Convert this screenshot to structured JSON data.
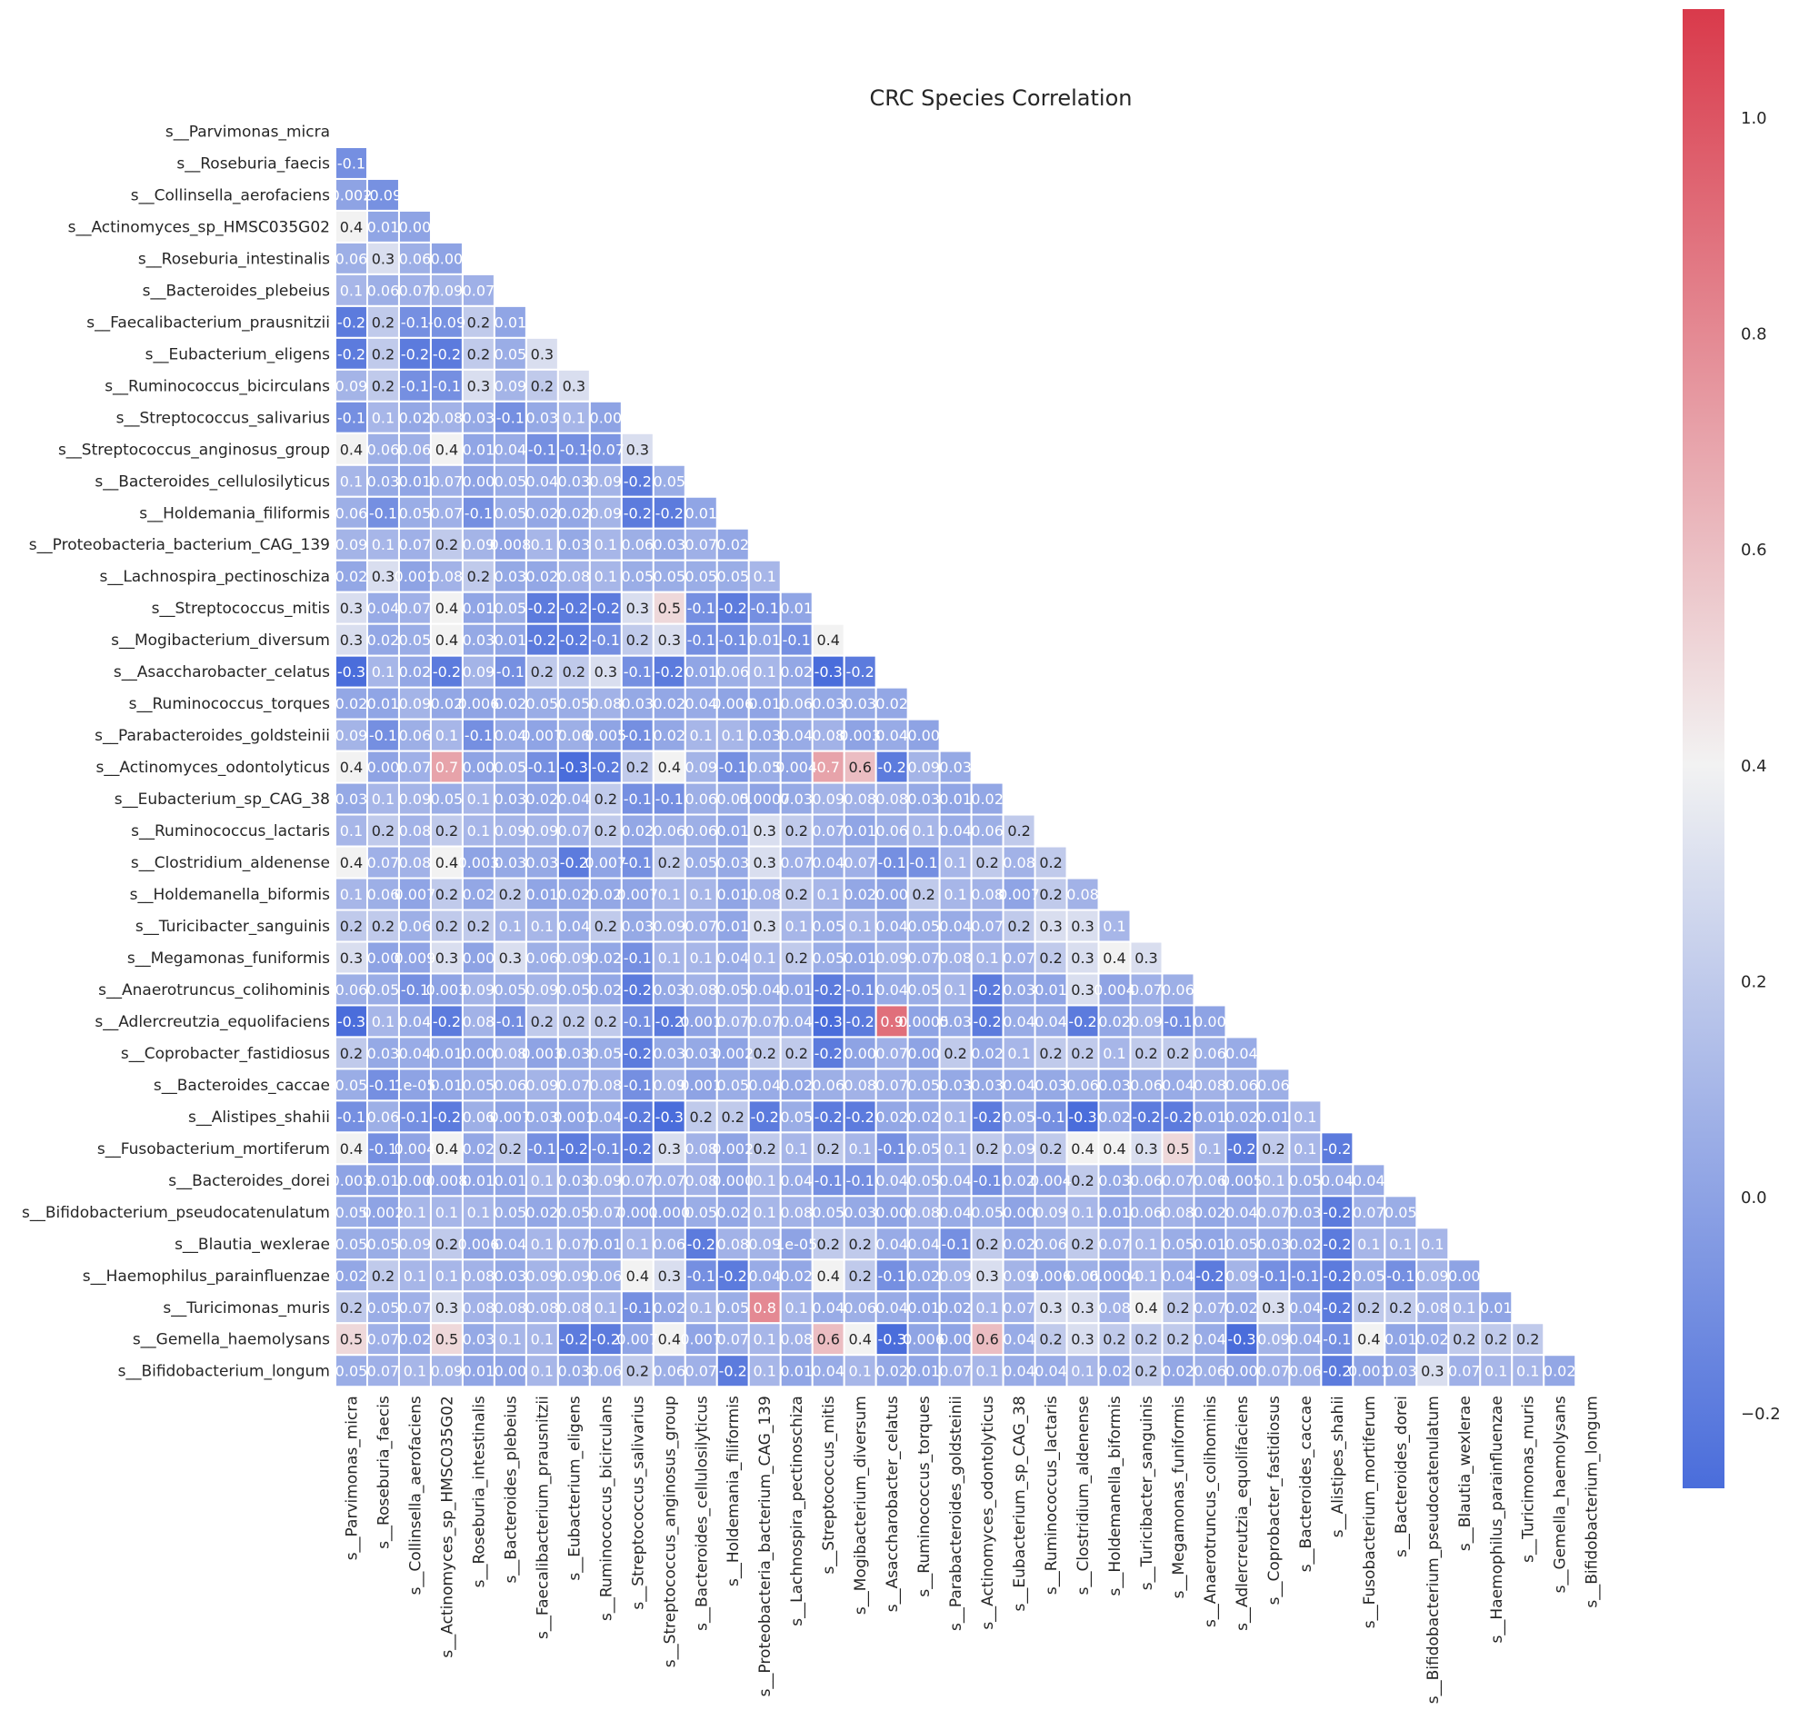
{
  "chart_data": {
    "type": "heatmap",
    "title": "CRC Species Correlation",
    "species": [
      "s__Parvimonas_micra",
      "s__Roseburia_faecis",
      "s__Collinsella_aerofaciens",
      "s__Actinomyces_sp_HMSC035G02",
      "s__Roseburia_intestinalis",
      "s__Bacteroides_plebeius",
      "s__Faecalibacterium_prausnitzii",
      "s__Eubacterium_eligens",
      "s__Ruminococcus_bicirculans",
      "s__Streptococcus_salivarius",
      "s__Streptococcus_anginosus_group",
      "s__Bacteroides_cellulosilyticus",
      "s__Holdemania_filiformis",
      "s__Proteobacteria_bacterium_CAG_139",
      "s__Lachnospira_pectinoschiza",
      "s__Streptococcus_mitis",
      "s__Mogibacterium_diversum",
      "s__Asaccharobacter_celatus",
      "s__Ruminococcus_torques",
      "s__Parabacteroides_goldsteinii",
      "s__Actinomyces_odontolyticus",
      "s__Eubacterium_sp_CAG_38",
      "s__Ruminococcus_lactaris",
      "s__Clostridium_aldenense",
      "s__Holdemanella_biformis",
      "s__Turicibacter_sanguinis",
      "s__Megamonas_funiformis",
      "s__Anaerotruncus_colihominis",
      "s__Adlercreutzia_equolifaciens",
      "s__Coprobacter_fastidiosus",
      "s__Bacteroides_caccae",
      "s__Alistipes_shahii",
      "s__Fusobacterium_mortiferum",
      "s__Bacteroides_dorei",
      "s__Bifidobacterium_pseudocatenulatum",
      "s__Blautia_wexlerae",
      "s__Haemophilus_parainfluenzae",
      "s__Turicimonas_muris",
      "s__Gemella_haemolysans",
      "s__Bifidobacterium_longum"
    ],
    "values": [
      [],
      [
        "-0.1"
      ],
      [
        "0.002",
        "-0.09"
      ],
      [
        "0.4",
        "0.01",
        "0.00"
      ],
      [
        "0.06",
        "0.3",
        "0.06",
        "0.00"
      ],
      [
        "0.1",
        "0.06",
        "0.07",
        "0.09",
        "0.07"
      ],
      [
        "-0.2",
        "0.2",
        "-0.1",
        "-0.09",
        "0.2",
        "0.01"
      ],
      [
        "-0.2",
        "0.2",
        "-0.2",
        "-0.2",
        "0.2",
        "0.05",
        "0.3"
      ],
      [
        "0.09",
        "0.2",
        "-0.1",
        "-0.1",
        "0.3",
        "0.09",
        "0.2",
        "0.3"
      ],
      [
        "-0.1",
        "0.1",
        "0.02",
        "0.08",
        "0.03",
        "-0.1",
        "0.03",
        "0.1",
        "0.00"
      ],
      [
        "0.4",
        "0.06",
        "0.06",
        "0.4",
        "0.01",
        "0.04",
        "-0.1",
        "-0.1",
        "-0.07",
        "0.3"
      ],
      [
        "0.1",
        "0.03",
        "0.01",
        "0.07",
        "0.00",
        "0.05",
        "0.04",
        "0.03",
        "0.09",
        "-0.2",
        "0.05"
      ],
      [
        "0.06",
        "-0.1",
        "0.05",
        "0.07",
        "-0.1",
        "0.05",
        "0.02",
        "0.02",
        "0.09",
        "-0.2",
        "-0.2",
        "0.01"
      ],
      [
        "0.09",
        "0.1",
        "0.07",
        "0.2",
        "0.09",
        "0.008",
        "0.1",
        "0.03",
        "0.1",
        "0.06",
        "0.03",
        "0.07",
        "0.02"
      ],
      [
        "0.02",
        "0.3",
        "0.001",
        "0.08",
        "0.2",
        "0.03",
        "0.02",
        "0.08",
        "0.1",
        "0.05",
        "0.05",
        "0.05",
        "0.05",
        "0.1"
      ],
      [
        "0.3",
        "0.04",
        "0.07",
        "0.4",
        "0.01",
        "0.05",
        "-0.2",
        "-0.2",
        "-0.2",
        "0.3",
        "0.5",
        "-0.1",
        "-0.2",
        "-0.1",
        "0.01"
      ],
      [
        "0.3",
        "0.02",
        "0.05",
        "0.4",
        "0.03",
        "0.01",
        "-0.2",
        "-0.2",
        "-0.1",
        "0.2",
        "0.3",
        "-0.1",
        "-0.1",
        "0.01",
        "-0.1",
        "0.4"
      ],
      [
        "-0.3",
        "0.1",
        "0.02",
        "-0.2",
        "0.09",
        "-0.1",
        "0.2",
        "0.2",
        "0.3",
        "-0.1",
        "-0.2",
        "0.01",
        "0.06",
        "0.1",
        "0.02",
        "-0.3",
        "-0.2"
      ],
      [
        "0.02",
        "0.01",
        "0.09",
        "0.02",
        "0.006",
        "0.02",
        "0.05",
        "0.05",
        "0.08",
        "0.03",
        "0.02",
        "0.04",
        "0.006",
        "0.01",
        "0.06",
        "0.03",
        "0.03",
        "0.02"
      ],
      [
        "0.09",
        "-0.1",
        "0.06",
        "0.1",
        "-0.1",
        "0.04",
        "0.007",
        "0.06",
        "0.005",
        "-0.1",
        "0.02",
        "0.1",
        "0.1",
        "0.03",
        "0.04",
        "0.08",
        "0.003",
        "0.04",
        "0.00"
      ],
      [
        "0.4",
        "0.00",
        "0.07",
        "0.7",
        "0.00",
        "0.05",
        "-0.1",
        "-0.3",
        "-0.2",
        "0.2",
        "0.4",
        "0.09",
        "-0.1",
        "0.05",
        "0.004",
        "0.7",
        "0.6",
        "-0.2",
        "0.09",
        "0.03"
      ],
      [
        "0.03",
        "0.1",
        "0.09",
        "0.05",
        "0.1",
        "0.03",
        "0.02",
        "0.04",
        "0.2",
        "-0.1",
        "-0.1",
        "0.06",
        "0.05",
        "0.0007",
        "0.03",
        "0.09",
        "0.08",
        "0.08",
        "0.03",
        "0.01",
        "0.02"
      ],
      [
        "0.1",
        "0.2",
        "0.08",
        "0.2",
        "0.1",
        "0.09",
        "0.09",
        "0.07",
        "0.2",
        "0.02",
        "0.06",
        "0.06",
        "0.01",
        "0.3",
        "0.2",
        "0.07",
        "0.01",
        "0.06",
        "0.1",
        "0.04",
        "0.06",
        "0.2"
      ],
      [
        "0.4",
        "0.07",
        "0.08",
        "0.4",
        "0.003",
        "0.03",
        "0.03",
        "-0.2",
        "0.007",
        "-0.1",
        "0.2",
        "0.05",
        "0.03",
        "0.3",
        "0.07",
        "0.04",
        "0.07",
        "-0.1",
        "-0.1",
        "0.1",
        "0.2",
        "0.08",
        "0.2"
      ],
      [
        "0.1",
        "0.06",
        "0.007",
        "0.2",
        "0.02",
        "0.2",
        "0.01",
        "0.02",
        "0.02",
        "0.007",
        "0.1",
        "0.1",
        "0.01",
        "0.08",
        "0.2",
        "0.1",
        "0.02",
        "0.00",
        "0.2",
        "0.1",
        "0.08",
        "0.007",
        "0.2",
        "0.08"
      ],
      [
        "0.2",
        "0.2",
        "0.06",
        "0.2",
        "0.2",
        "0.1",
        "0.1",
        "0.04",
        "0.2",
        "0.03",
        "0.09",
        "0.07",
        "0.01",
        "0.3",
        "0.1",
        "0.05",
        "0.1",
        "0.04",
        "0.05",
        "0.04",
        "0.07",
        "0.2",
        "0.3",
        "0.3",
        "0.1"
      ],
      [
        "0.3",
        "0.00",
        "0.009",
        "0.3",
        "0.00",
        "0.3",
        "0.06",
        "0.09",
        "0.02",
        "-0.1",
        "0.1",
        "0.1",
        "0.04",
        "0.1",
        "0.2",
        "0.05",
        "0.01",
        "0.09",
        "0.07",
        "0.08",
        "0.1",
        "0.07",
        "0.2",
        "0.3",
        "0.4",
        "0.3"
      ],
      [
        "0.06",
        "0.05",
        "-0.1",
        "0.003",
        "0.09",
        "0.05",
        "0.09",
        "0.05",
        "0.02",
        "-0.2",
        "0.03",
        "0.08",
        "0.05",
        "0.04",
        "0.01",
        "-0.2",
        "-0.1",
        "0.04",
        "0.05",
        "0.1",
        "-0.2",
        "0.03",
        "0.01",
        "0.3",
        "0.004",
        "0.07",
        "0.06"
      ],
      [
        "-0.3",
        "0.1",
        "0.04",
        "-0.2",
        "0.08",
        "-0.1",
        "0.2",
        "0.2",
        "0.2",
        "-0.1",
        "-0.2",
        "0.001",
        "0.07",
        "0.07",
        "0.04",
        "-0.3",
        "-0.2",
        "0.9",
        "0.0005",
        "0.03",
        "-0.2",
        "0.04",
        "0.04",
        "-0.2",
        "0.02",
        "0.09",
        "-0.1",
        "0.00"
      ],
      [
        "0.2",
        "0.03",
        "0.04",
        "0.01",
        "0.00",
        "0.08",
        "0.003",
        "0.03",
        "0.05",
        "-0.2",
        "0.03",
        "0.03",
        "0.002",
        "0.2",
        "0.2",
        "-0.2",
        "0.00",
        "0.07",
        "0.00",
        "0.2",
        "0.02",
        "0.1",
        "0.2",
        "0.2",
        "0.1",
        "0.2",
        "0.2",
        "0.06",
        "0.04"
      ],
      [
        "0.05",
        "-0.1",
        "1e-05",
        "0.01",
        "0.05",
        "0.06",
        "0.09",
        "0.07",
        "0.08",
        "-0.1",
        "0.09",
        "0.001",
        "0.05",
        "0.04",
        "0.02",
        "0.06",
        "0.08",
        "0.07",
        "0.05",
        "0.03",
        "0.03",
        "0.04",
        "0.03",
        "0.06",
        "0.03",
        "0.06",
        "0.04",
        "0.08",
        "0.06",
        "0.06"
      ],
      [
        "-0.1",
        "0.06",
        "-0.1",
        "-0.2",
        "0.06",
        "0.007",
        "0.03",
        "0.001",
        "0.04",
        "-0.2",
        "-0.3",
        "0.2",
        "0.2",
        "-0.2",
        "0.05",
        "-0.2",
        "-0.2",
        "0.02",
        "0.02",
        "0.1",
        "-0.2",
        "0.05",
        "-0.1",
        "-0.3",
        "0.02",
        "-0.2",
        "-0.2",
        "0.01",
        "0.02",
        "0.01",
        "0.1"
      ],
      [
        "0.4",
        "-0.1",
        "0.004",
        "0.4",
        "0.02",
        "0.2",
        "-0.1",
        "-0.2",
        "-0.1",
        "-0.2",
        "0.3",
        "0.08",
        "0.002",
        "0.2",
        "0.1",
        "0.2",
        "0.1",
        "-0.1",
        "0.05",
        "0.1",
        "0.2",
        "0.09",
        "0.2",
        "0.4",
        "0.4",
        "0.3",
        "0.5",
        "0.1",
        "-0.2",
        "0.2",
        "0.1",
        "-0.2"
      ],
      [
        "0.003",
        "0.01",
        "0.00",
        "0.008",
        "0.01",
        "0.01",
        "0.1",
        "0.03",
        "0.09",
        "0.07",
        "0.07",
        "0.08",
        "0.000",
        "0.1",
        "0.04",
        "-0.1",
        "-0.1",
        "0.04",
        "0.05",
        "0.04",
        "-0.1",
        "0.02",
        "0.004",
        "0.2",
        "0.03",
        "0.06",
        "0.07",
        "0.06",
        "0.005",
        "0.1",
        "0.05",
        "0.04",
        "0.04"
      ],
      [
        "0.05",
        "0.002",
        "0.1",
        "0.1",
        "0.1",
        "0.05",
        "0.02",
        "0.05",
        "0.07",
        "0.001",
        "0.000",
        "0.05",
        "0.02",
        "0.1",
        "0.08",
        "0.05",
        "0.03",
        "0.00",
        "0.08",
        "0.04",
        "0.05",
        "0.00",
        "0.09",
        "0.1",
        "0.01",
        "0.06",
        "0.08",
        "0.02",
        "0.04",
        "0.07",
        "0.03",
        "-0.2",
        "0.07",
        "0.05"
      ],
      [
        "0.05",
        "0.05",
        "0.09",
        "0.2",
        "0.006",
        "0.04",
        "0.1",
        "0.07",
        "0.01",
        "0.1",
        "0.06",
        "-0.2",
        "0.08",
        "0.09",
        "1e-05",
        "0.2",
        "0.2",
        "0.04",
        "0.04",
        "-0.1",
        "0.2",
        "0.02",
        "0.06",
        "0.2",
        "0.07",
        "0.1",
        "0.05",
        "0.01",
        "0.05",
        "0.03",
        "0.02",
        "-0.2",
        "0.1",
        "0.1",
        "0.1"
      ],
      [
        "0.02",
        "0.2",
        "0.1",
        "0.1",
        "0.08",
        "0.03",
        "0.09",
        "0.09",
        "0.06",
        "0.4",
        "0.3",
        "-0.1",
        "-0.2",
        "0.04",
        "0.02",
        "0.4",
        "0.2",
        "-0.1",
        "0.02",
        "0.09",
        "0.3",
        "0.09",
        "0.006",
        "0.06",
        "0.0004",
        "0.1",
        "0.04",
        "-0.2",
        "0.09",
        "-0.1",
        "-0.1",
        "-0.2",
        "0.05",
        "-0.1",
        "0.09",
        "0.00"
      ],
      [
        "0.2",
        "0.05",
        "0.07",
        "0.3",
        "0.08",
        "0.08",
        "0.08",
        "0.08",
        "0.1",
        "-0.1",
        "0.02",
        "0.1",
        "0.05",
        "0.8",
        "0.1",
        "0.04",
        "0.06",
        "0.04",
        "0.01",
        "0.02",
        "0.1",
        "0.07",
        "0.3",
        "0.3",
        "0.08",
        "0.4",
        "0.2",
        "0.07",
        "0.02",
        "0.3",
        "0.04",
        "-0.2",
        "0.2",
        "0.2",
        "0.08",
        "0.1",
        "0.01"
      ],
      [
        "0.5",
        "0.07",
        "0.02",
        "0.5",
        "0.03",
        "0.1",
        "0.1",
        "-0.2",
        "-0.2",
        "0.007",
        "0.4",
        "0.007",
        "0.07",
        "0.1",
        "0.08",
        "0.6",
        "0.4",
        "-0.3",
        "0.006",
        "0.00",
        "0.6",
        "0.04",
        "0.2",
        "0.3",
        "0.2",
        "0.2",
        "0.2",
        "0.04",
        "-0.3",
        "0.09",
        "0.04",
        "-0.1",
        "0.4",
        "0.01",
        "0.02",
        "0.2",
        "0.2",
        "0.2"
      ],
      [
        "0.05",
        "0.07",
        "0.1",
        "0.09",
        "0.01",
        "0.00",
        "0.1",
        "0.03",
        "0.06",
        "0.2",
        "0.06",
        "0.07",
        "-0.2",
        "0.1",
        "0.01",
        "0.04",
        "0.1",
        "0.02",
        "0.01",
        "0.07",
        "0.1",
        "0.04",
        "0.04",
        "0.1",
        "0.02",
        "0.2",
        "0.02",
        "0.06",
        "0.00",
        "0.07",
        "0.06",
        "-0.2",
        "0.001",
        "0.03",
        "0.3",
        "0.07",
        "0.1",
        "0.1",
        "0.02"
      ]
    ],
    "colorbar": {
      "min": -0.27,
      "max": 1.1,
      "ticks": [
        -0.2,
        0.0,
        0.2,
        0.4,
        0.6,
        0.8,
        1.0
      ],
      "tick_labels": [
        "−0.2",
        "0.0",
        "0.2",
        "0.4",
        "0.6",
        "0.8",
        "1.0"
      ]
    },
    "colormap": {
      "low": "#4a6ddb",
      "mid": "#f2f2f2",
      "high": "#d93a4b",
      "mid_value": 0.4
    }
  }
}
